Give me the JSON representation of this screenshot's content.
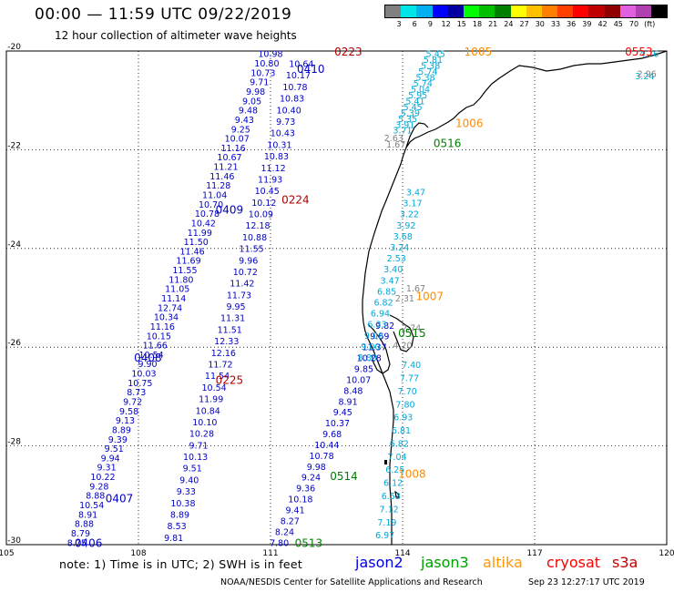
{
  "header": {
    "title": "00:00 — 11:59 UTC 09/22/2019",
    "subtitle": "12 hour collection of altimeter wave heights"
  },
  "scale": {
    "unit": "(ft)",
    "colors": [
      "#808080",
      "#00e5e5",
      "#00b0f0",
      "#0000ff",
      "#0000a0",
      "#00ff00",
      "#00c000",
      "#008000",
      "#ffff00",
      "#ffc000",
      "#ff8000",
      "#ff4000",
      "#ff0000",
      "#c00000",
      "#900000",
      "#e060e0",
      "#b040b0",
      "#000000"
    ],
    "labels": [
      "3",
      "6",
      "9",
      "12",
      "15",
      "18",
      "21",
      "24",
      "27",
      "30",
      "33",
      "36",
      "39",
      "42",
      "45",
      "70"
    ]
  },
  "axes": {
    "x_ticks": [
      "105",
      "108",
      "111",
      "114",
      "117",
      "120"
    ],
    "y_ticks": [
      "-20",
      "-22",
      "-24",
      "-26",
      "-28",
      "-30"
    ]
  },
  "tracks": [
    {
      "color": "#0000c8",
      "lon0": 111.0,
      "lat0": -20.05,
      "lon1": 106.6,
      "lat1": -29.95,
      "values": [
        "10.98",
        "10.80",
        "10.73",
        "9.71",
        "9.98",
        "9.05",
        "9.48",
        "9.43",
        "9.25",
        "10.07",
        "11.16",
        "10.67",
        "11.21",
        "11.46",
        "11.28",
        "11.04",
        "10.70",
        "10.78",
        "10.42",
        "11.99",
        "11.50",
        "11.46",
        "11.69",
        "11.55",
        "11.80",
        "11.05",
        "11.14",
        "12.74",
        "10.34",
        "11.16",
        "10.15",
        "11.66",
        "10.54",
        "9.90",
        "10.03",
        "10.75",
        "8.73",
        "9.72",
        "9.58",
        "9.13",
        "8.89",
        "9.39",
        "9.51",
        "9.94",
        "9.31",
        "10.22",
        "9.28",
        "8.88",
        "10.54",
        "8.91",
        "8.88",
        "8.79",
        "8.75"
      ]
    },
    {
      "color": "#0000c8",
      "lon0": 111.7,
      "lat0": -20.25,
      "lon1": 108.8,
      "lat1": -29.85,
      "values": [
        "10.64",
        "10.17",
        "10.78",
        "10.83",
        "10.40",
        "9.73",
        "10.43",
        "10.31",
        "10.83",
        "11.12",
        "11.93",
        "10.45",
        "10.12",
        "10.09",
        "12.18",
        "10.88",
        "11.55",
        "9.96",
        "10.72",
        "11.42",
        "11.73",
        "9.95",
        "11.31",
        "11.51",
        "12.33",
        "12.16",
        "11.72",
        "11.54",
        "10.54",
        "11.99",
        "10.84",
        "10.10",
        "10.28",
        "9.71",
        "10.13",
        "9.51",
        "9.40",
        "9.33",
        "10.38",
        "8.89",
        "8.53",
        "9.81"
      ]
    },
    {
      "color": "#0000c8",
      "lon0": 113.6,
      "lat0": -25.55,
      "lon1": 111.2,
      "lat1": -29.95,
      "values": [
        "9.82",
        "9.69",
        "11.37",
        "10.28",
        "9.85",
        "10.07",
        "8.48",
        "8.91",
        "9.45",
        "10.37",
        "9.68",
        "10.44",
        "10.78",
        "9.98",
        "9.24",
        "9.36",
        "10.18",
        "9.41",
        "8.27",
        "8.24",
        "7.80"
      ]
    },
    {
      "color": "#00a8d8",
      "lon0": 114.75,
      "lat0": -20.05,
      "lon1": 114.0,
      "lat1": -21.6,
      "values": [
        "5.45",
        "5.81",
        "5.38",
        "5.74",
        "5.38",
        "5.74",
        "5.04",
        "5.95",
        "5.41",
        "5.45",
        "5.39",
        "5.35",
        "3.91",
        "3.71"
      ]
    },
    {
      "color": "#00a8d8",
      "lon0": 114.3,
      "lat0": -22.85,
      "lon1": 113.2,
      "lat1": -26.2,
      "values": [
        "3.47",
        "3.17",
        "3.22",
        "3.92",
        "3.68",
        "3.24",
        "2.53",
        "3.40",
        "3.47",
        "6.85",
        "6.82",
        "6.94",
        "6.33",
        "9.00",
        "9.00",
        "8.80"
      ]
    },
    {
      "color": "#00a8d8",
      "lon0": 114.2,
      "lat0": -26.35,
      "lon1": 113.6,
      "lat1": -29.8,
      "values": [
        "7.40",
        "7.77",
        "7.70",
        "7.80",
        "6.93",
        "6.81",
        "6.82",
        "7.04",
        "6.25",
        "6.12",
        "6.53",
        "7.12",
        "7.19",
        "6.97"
      ]
    },
    {
      "color": "#00a8d8",
      "lon0": 119.6,
      "lat0": -20.05,
      "lon1": 119.5,
      "lat1": -20.5,
      "values": [
        "4.76",
        "3.24"
      ]
    }
  ],
  "gray_labels": [
    {
      "t": "2.96",
      "lon": 119.55,
      "lat": -20.45
    },
    {
      "t": "2.63",
      "lon": 113.8,
      "lat": -21.75
    },
    {
      "t": "1.67",
      "lon": 113.85,
      "lat": -21.88
    },
    {
      "t": "1.67",
      "lon": 114.3,
      "lat": -24.8
    },
    {
      "t": "2.31",
      "lon": 114.05,
      "lat": -25.0
    },
    {
      "t": "2.74",
      "lon": 114.2,
      "lat": -25.6
    },
    {
      "t": "4.20",
      "lon": 114.0,
      "lat": -25.95
    }
  ],
  "time_labels": [
    {
      "t": "0223",
      "lon": 112.45,
      "lat": -20.0,
      "color": "#b00000"
    },
    {
      "t": "0410",
      "lon": 111.6,
      "lat": -20.35,
      "color": "#0000c8"
    },
    {
      "t": "0224",
      "lon": 111.25,
      "lat": -23.0,
      "color": "#b00000"
    },
    {
      "t": "0409",
      "lon": 109.75,
      "lat": -23.2,
      "color": "#0000c8"
    },
    {
      "t": "0408",
      "lon": 107.9,
      "lat": -26.2,
      "color": "#0000c8"
    },
    {
      "t": "0225",
      "lon": 109.75,
      "lat": -26.65,
      "color": "#b00000"
    },
    {
      "t": "0407",
      "lon": 107.25,
      "lat": -29.05,
      "color": "#0000c8"
    },
    {
      "t": "0406",
      "lon": 106.55,
      "lat": -29.95,
      "color": "#0000c8"
    },
    {
      "t": "0514",
      "lon": 112.35,
      "lat": -28.6,
      "color": "#008000"
    },
    {
      "t": "0513",
      "lon": 111.55,
      "lat": -29.95,
      "color": "#008000"
    },
    {
      "t": "0516",
      "lon": 114.7,
      "lat": -21.85,
      "color": "#008000"
    },
    {
      "t": "0515",
      "lon": 113.9,
      "lat": -25.7,
      "color": "#008000"
    },
    {
      "t": "1005",
      "lon": 115.4,
      "lat": -20.0,
      "color": "#ff8c00"
    },
    {
      "t": "1006",
      "lon": 115.2,
      "lat": -21.45,
      "color": "#ff8c00"
    },
    {
      "t": "1007",
      "lon": 114.3,
      "lat": -24.95,
      "color": "#ff8c00"
    },
    {
      "t": "1008",
      "lon": 113.9,
      "lat": -28.55,
      "color": "#ff8c00"
    },
    {
      "t": "0553",
      "lon": 119.05,
      "lat": -20.0,
      "color": "#ff0000"
    }
  ],
  "footer": {
    "note": "note:  1) Time is in UTC;  2) SWH is in feet",
    "satellites": [
      {
        "label": "jason2",
        "color": "#0000e0"
      },
      {
        "label": "jason3",
        "color": "#00a000"
      },
      {
        "label": "altika",
        "color": "#ff9900"
      },
      {
        "label": "cryosat",
        "color": "#ff0000"
      },
      {
        "label": "s3a",
        "color": "#c00000"
      }
    ],
    "credit": "NOAA/NESDIS Center for Satellite Applications and Research",
    "stamp": "Sep 23 12:27:17 UTC 2019"
  }
}
